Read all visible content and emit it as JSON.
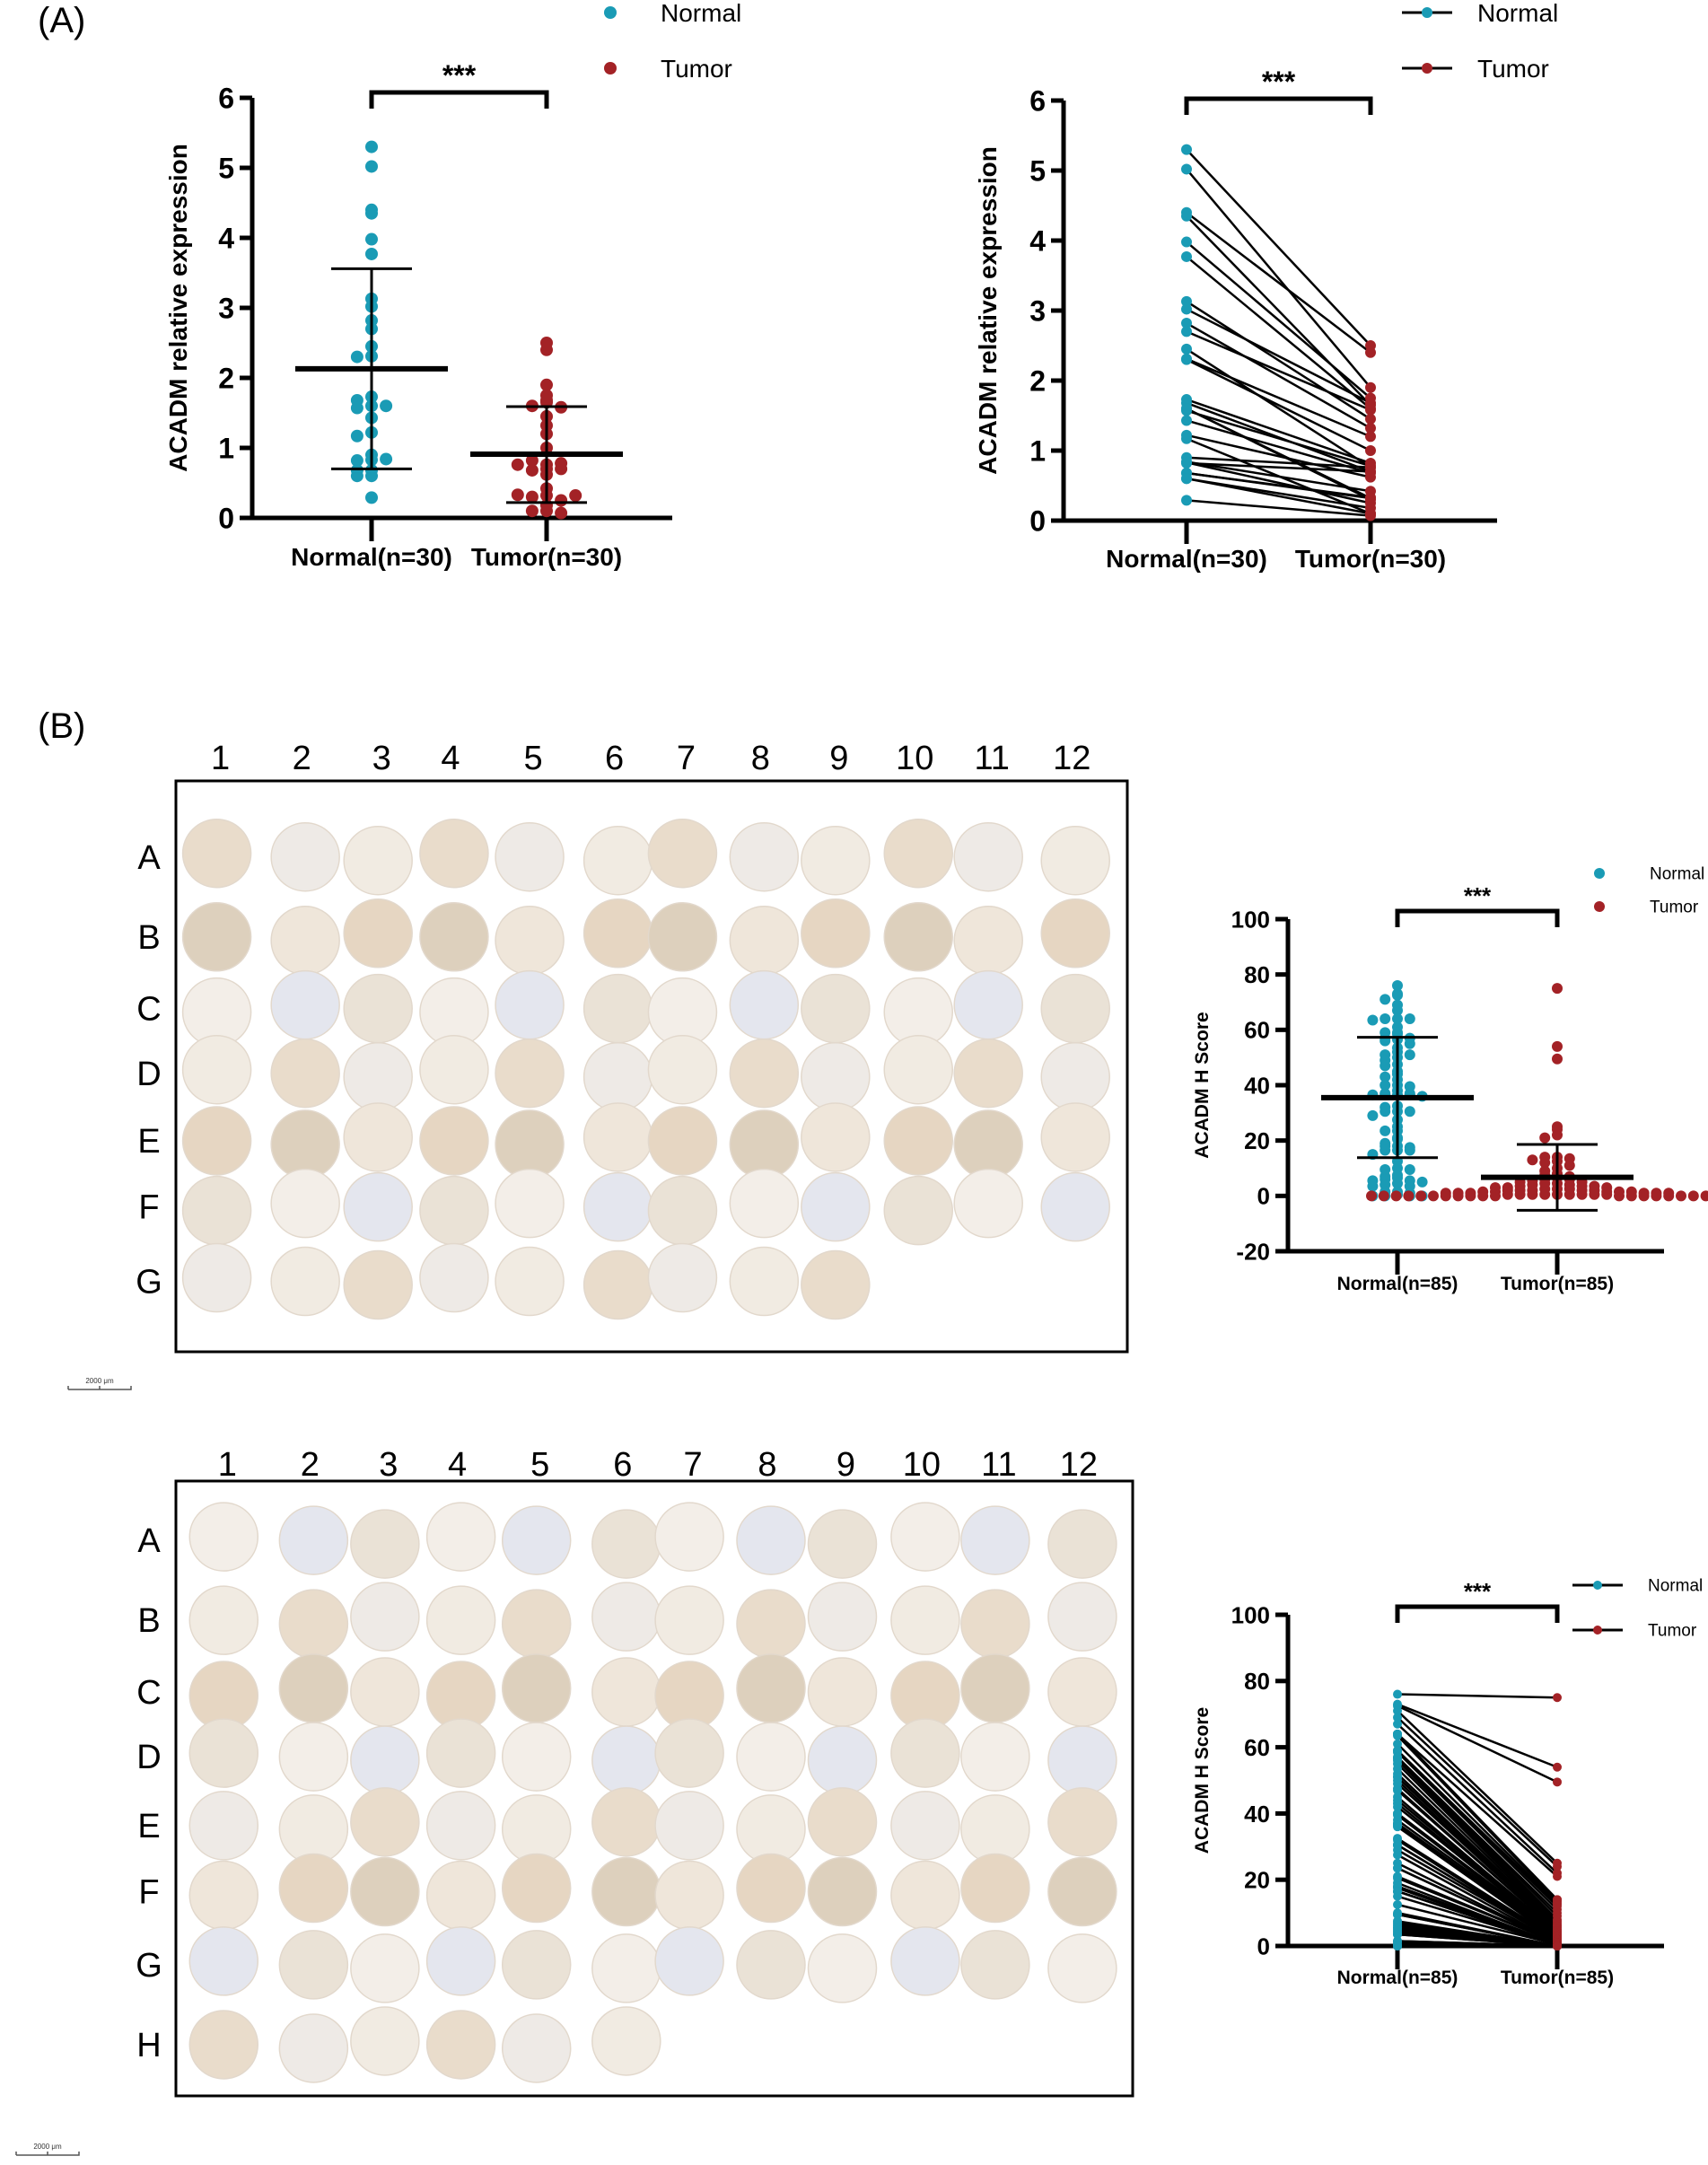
{
  "panel_labels": {
    "a": "(A)",
    "b": "(B)"
  },
  "colors": {
    "normal": "#1a9bb5",
    "tumor": "#a32226",
    "line": "#000000"
  },
  "legend": {
    "normal": "Normal",
    "tumor": "Tumor"
  },
  "significance": "***",
  "scale_bar": "2000 μm",
  "tma": {
    "columns": [
      "1",
      "2",
      "3",
      "4",
      "5",
      "6",
      "7",
      "8",
      "9",
      "10",
      "11",
      "12"
    ],
    "rows_1": [
      "A",
      "B",
      "C",
      "D",
      "E",
      "F",
      "G"
    ],
    "rows_2": [
      "A",
      "B",
      "C",
      "D",
      "E",
      "F",
      "G",
      "H"
    ]
  },
  "chart_data": [
    {
      "type": "scatter",
      "ylabel": "ACADM relative expression",
      "categories": [
        "Normal(n=30)",
        "Tumor(n=30)"
      ],
      "ylim": [
        0,
        6
      ],
      "yticks": [
        "0",
        "1",
        "2",
        "3",
        "4",
        "5",
        "6"
      ],
      "legend_position": "top-right",
      "series": [
        {
          "name": "Normal",
          "mean": 2.13,
          "sd_upper": 3.56,
          "sd_lower": 0.7,
          "values": [
            5.3,
            5.02,
            4.4,
            4.35,
            3.98,
            3.77,
            3.13,
            3.02,
            2.82,
            2.7,
            2.45,
            2.31,
            2.3,
            1.73,
            1.68,
            1.6,
            1.57,
            1.6,
            1.43,
            1.22,
            1.17,
            0.9,
            0.83,
            0.82,
            0.84,
            0.68,
            0.68,
            0.6,
            0.6,
            0.29
          ]
        },
        {
          "name": "Tumor",
          "mean": 0.91,
          "sd_upper": 1.59,
          "sd_lower": 0.22,
          "values": [
            2.5,
            1.9,
            2.4,
            1.65,
            1.75,
            1.6,
            1.45,
            1.68,
            1.32,
            1.58,
            0.76,
            1.2,
            1.0,
            0.82,
            0.7,
            0.32,
            0.78,
            0.3,
            0.68,
            0.62,
            0.1,
            0.76,
            0.25,
            0.7,
            0.42,
            0.33,
            0.32,
            0.18,
            0.1,
            0.07
          ]
        }
      ],
      "significance": "***"
    },
    {
      "type": "line",
      "subtype": "paired",
      "ylabel": "ACADM relative expression",
      "categories": [
        "Normal(n=30)",
        "Tumor(n=30)"
      ],
      "ylim": [
        0,
        6
      ],
      "yticks": [
        "0",
        "1",
        "2",
        "3",
        "4",
        "5",
        "6"
      ],
      "legend_position": "top-right",
      "pairs_from": "chart_data.0",
      "significance": "***"
    },
    {
      "type": "scatter",
      "ylabel": "ACADM H Score",
      "categories": [
        "Normal(n=85)",
        "Tumor(n=85)"
      ],
      "ylim": [
        -20,
        100
      ],
      "yticks": [
        "-20",
        "0",
        "20",
        "40",
        "60",
        "80",
        "100"
      ],
      "legend_position": "top-right",
      "series": [
        {
          "name": "Normal",
          "mean": 35.5,
          "sd_upper": 57.3,
          "sd_lower": 13.8,
          "values": [
            76,
            73,
            72.5,
            71,
            69,
            67,
            64,
            64,
            64,
            63.5,
            61,
            59,
            59,
            58.5,
            57,
            57,
            56.5,
            56,
            55,
            53.5,
            52,
            51,
            51,
            50,
            49,
            47.5,
            47,
            45,
            44,
            43,
            42,
            40,
            40,
            39.5,
            38,
            37,
            37,
            36.5,
            36.5,
            36.5,
            36.5,
            36,
            32.5,
            32,
            30.5,
            30.5,
            30.5,
            29,
            27.5,
            25,
            23.5,
            23.5,
            21,
            20.5,
            19,
            18,
            18,
            17.5,
            16.5,
            16.5,
            16.5,
            15,
            12.5,
            10,
            9.5,
            9.5,
            7.5,
            7,
            6.5,
            6,
            5.5,
            5.5,
            5,
            4.5,
            4,
            3.5,
            3.5,
            1.5,
            1.5,
            1,
            0.5,
            0,
            0,
            0,
            0
          ]
        },
        {
          "name": "Tumor",
          "mean": 6.7,
          "sd_upper": 18.6,
          "sd_lower": -5.2,
          "values": [
            75,
            54,
            49.5,
            25,
            24,
            22,
            21,
            14,
            14,
            13.5,
            13,
            12.5,
            12,
            11,
            10,
            9,
            8,
            7.5,
            7,
            6.5,
            6,
            6,
            5.5,
            5,
            5,
            4.5,
            4.5,
            4,
            4,
            3.5,
            3.5,
            3.5,
            3,
            3,
            3,
            2.5,
            2.5,
            2.5,
            2,
            2,
            2,
            2,
            2,
            1.5,
            1.5,
            1.5,
            1.5,
            1.5,
            1,
            1,
            1,
            1,
            1,
            1,
            0.5,
            0.5,
            0.5,
            0.5,
            0.5,
            0.5,
            0.5,
            0.5,
            0.5,
            0,
            0,
            0,
            0,
            0,
            0,
            0,
            0,
            0,
            0,
            0,
            0,
            0,
            0,
            0,
            0,
            0,
            0,
            0,
            0,
            0,
            0
          ]
        }
      ],
      "significance": "***"
    },
    {
      "type": "line",
      "subtype": "paired",
      "ylabel": "ACADM H Score",
      "categories": [
        "Normal(n=85)",
        "Tumor(n=85)"
      ],
      "ylim": [
        0,
        100
      ],
      "yticks": [
        "0",
        "20",
        "40",
        "60",
        "80",
        "100"
      ],
      "legend_position": "top-right",
      "pairs_from": "chart_data.2",
      "significance": "***"
    }
  ]
}
